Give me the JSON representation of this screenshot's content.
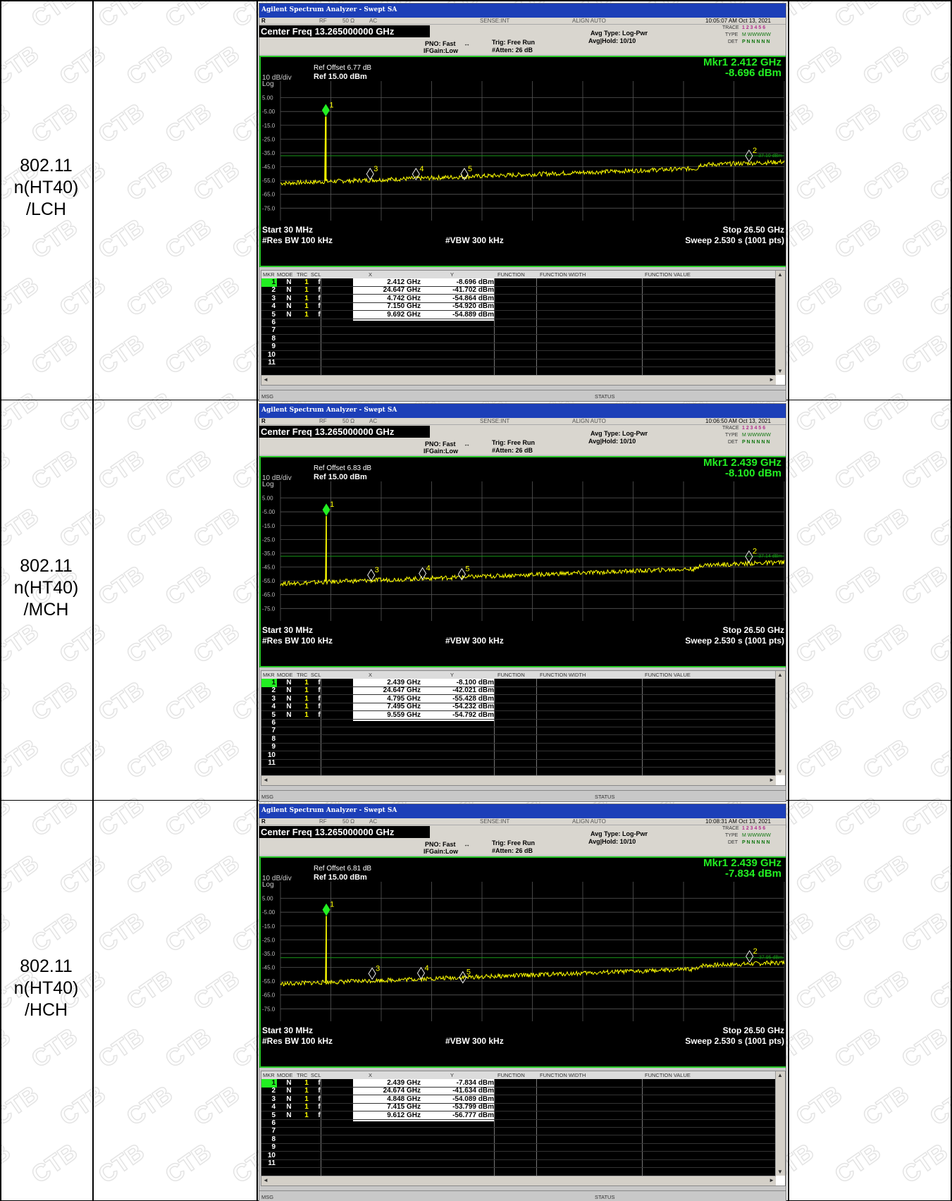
{
  "rows": [
    {
      "label": "802.11\nn(HT40)\n/LCH",
      "sa": {
        "title": "Agilent Spectrum Analyzer - Swept SA",
        "status_left": "R",
        "rf": "RF",
        "ohm": "50 Ω",
        "ac": "AC",
        "sense": "SENSE:INT",
        "align": "ALIGN AUTO",
        "timestamp": "10:05:07 AM Oct 13, 2021",
        "center_freq": "Center Freq 13.265000000 GHz",
        "pno": "PNO: Fast",
        "ifgain": "IFGain:Low",
        "trig": "Trig: Free Run",
        "atten": "#Atten: 26 dB",
        "avg_type": "Avg Type: Log-Pwr",
        "avg_hold": "Avg|Hold: 10/10",
        "trace_label": "TRACE",
        "type_label": "TYPE",
        "det_label": "DET",
        "trace_digits": "1 2 3 4 5 6",
        "type_vals": "M WWWWW",
        "det_vals": "P N N N N N",
        "mkr_line1": "Mkr1 2.412 GHz",
        "mkr_line2": "-8.696 dBm",
        "scale": "10 dB/div",
        "log": "Log",
        "ref_offset": "Ref Offset 6.77 dB",
        "ref_level": "Ref 15.00 dBm",
        "yticks": [
          "5.00",
          "-5.00",
          "-15.0",
          "-25.0",
          "-35.0",
          "-45.0",
          "-55.0",
          "-65.0",
          "-75.0"
        ],
        "limit_label": "-37.10 dBm",
        "start": "Start 30 MHz",
        "stop": "Stop 26.50 GHz",
        "rbw": "#Res BW 100 kHz",
        "vbw": "#VBW 300 kHz",
        "sweep": "Sweep  2.530 s (1001 pts)",
        "table_head": [
          "MKR",
          "MODE",
          "TRC",
          "SCL",
          "X",
          "Y",
          "FUNCTION",
          "FUNCTION WIDTH",
          "FUNCTION VALUE"
        ],
        "markers": [
          {
            "n": "1",
            "mode": "N",
            "trc": "1",
            "scl": "f",
            "x": "2.412 GHz",
            "y": "-8.696 dBm"
          },
          {
            "n": "2",
            "mode": "N",
            "trc": "1",
            "scl": "f",
            "x": "24.647 GHz",
            "y": "-41.702 dBm"
          },
          {
            "n": "3",
            "mode": "N",
            "trc": "1",
            "scl": "f",
            "x": "4.742 GHz",
            "y": "-54.864 dBm"
          },
          {
            "n": "4",
            "mode": "N",
            "trc": "1",
            "scl": "f",
            "x": "7.150 GHz",
            "y": "-54.920 dBm"
          },
          {
            "n": "5",
            "mode": "N",
            "trc": "1",
            "scl": "f",
            "x": "9.692 GHz",
            "y": "-54.889 dBm"
          }
        ],
        "empty_rows": [
          "6",
          "7",
          "8",
          "9",
          "10",
          "11"
        ],
        "msg": "MSG",
        "status": "STATUS",
        "peak_db": -8.696,
        "limit_db": -37.1,
        "marker_freqs": [
          2.412,
          24.647,
          4.742,
          7.15,
          9.692
        ],
        "marker_dbs": [
          -8.696,
          -41.702,
          -54.864,
          -54.92,
          -54.889
        ]
      }
    },
    {
      "label": "802.11\nn(HT40)\n/MCH",
      "sa": {
        "title": "Agilent Spectrum Analyzer - Swept SA",
        "status_left": "R",
        "rf": "RF",
        "ohm": "50 Ω",
        "ac": "AC",
        "sense": "SENSE:INT",
        "align": "ALIGN AUTO",
        "timestamp": "10:06:50 AM Oct 13, 2021",
        "center_freq": "Center Freq 13.265000000 GHz",
        "pno": "PNO: Fast",
        "ifgain": "IFGain:Low",
        "trig": "Trig: Free Run",
        "atten": "#Atten: 26 dB",
        "avg_type": "Avg Type: Log-Pwr",
        "avg_hold": "Avg|Hold: 10/10",
        "trace_label": "TRACE",
        "type_label": "TYPE",
        "det_label": "DET",
        "trace_digits": "1 2 3 4 5 6",
        "type_vals": "M WWWWW",
        "det_vals": "P N N N N N",
        "mkr_line1": "Mkr1 2.439 GHz",
        "mkr_line2": "-8.100 dBm",
        "scale": "10 dB/div",
        "log": "Log",
        "ref_offset": "Ref Offset 6.83 dB",
        "ref_level": "Ref 15.00 dBm",
        "yticks": [
          "5.00",
          "-5.00",
          "-15.0",
          "-25.0",
          "-35.0",
          "-45.0",
          "-55.0",
          "-65.0",
          "-75.0"
        ],
        "limit_label": "-37.14 dBm",
        "start": "Start 30 MHz",
        "stop": "Stop 26.50 GHz",
        "rbw": "#Res BW 100 kHz",
        "vbw": "#VBW 300 kHz",
        "sweep": "Sweep  2.530 s (1001 pts)",
        "table_head": [
          "MKR",
          "MODE",
          "TRC",
          "SCL",
          "X",
          "Y",
          "FUNCTION",
          "FUNCTION WIDTH",
          "FUNCTION VALUE"
        ],
        "markers": [
          {
            "n": "1",
            "mode": "N",
            "trc": "1",
            "scl": "f",
            "x": "2.439 GHz",
            "y": "-8.100 dBm"
          },
          {
            "n": "2",
            "mode": "N",
            "trc": "1",
            "scl": "f",
            "x": "24.647 GHz",
            "y": "-42.021 dBm"
          },
          {
            "n": "3",
            "mode": "N",
            "trc": "1",
            "scl": "f",
            "x": "4.795 GHz",
            "y": "-55.428 dBm"
          },
          {
            "n": "4",
            "mode": "N",
            "trc": "1",
            "scl": "f",
            "x": "7.495 GHz",
            "y": "-54.232 dBm"
          },
          {
            "n": "5",
            "mode": "N",
            "trc": "1",
            "scl": "f",
            "x": "9.559 GHz",
            "y": "-54.792 dBm"
          }
        ],
        "empty_rows": [
          "6",
          "7",
          "8",
          "9",
          "10",
          "11"
        ],
        "msg": "MSG",
        "status": "STATUS",
        "peak_db": -8.1,
        "limit_db": -37.14,
        "marker_freqs": [
          2.439,
          24.647,
          4.795,
          7.495,
          9.559
        ],
        "marker_dbs": [
          -8.1,
          -42.021,
          -55.428,
          -54.232,
          -54.792
        ]
      }
    },
    {
      "label": "802.11\nn(HT40)\n/HCH",
      "sa": {
        "title": "Agilent Spectrum Analyzer - Swept SA",
        "status_left": "R",
        "rf": "RF",
        "ohm": "50 Ω",
        "ac": "AC",
        "sense": "SENSE:INT",
        "align": "ALIGN AUTO",
        "timestamp": "10:08:31 AM Oct 13, 2021",
        "center_freq": "Center Freq 13.265000000 GHz",
        "pno": "PNO: Fast",
        "ifgain": "IFGain:Low",
        "trig": "Trig: Free Run",
        "atten": "#Atten: 26 dB",
        "avg_type": "Avg Type: Log-Pwr",
        "avg_hold": "Avg|Hold: 10/10",
        "trace_label": "TRACE",
        "type_label": "TYPE",
        "det_label": "DET",
        "trace_digits": "1 2 3 4 5 6",
        "type_vals": "M WWWWW",
        "det_vals": "P N N N N N",
        "mkr_line1": "Mkr1 2.439 GHz",
        "mkr_line2": "-7.834 dBm",
        "scale": "10 dB/div",
        "log": "Log",
        "ref_offset": "Ref Offset 6.81 dB",
        "ref_level": "Ref 15.00 dBm",
        "yticks": [
          "5.00",
          "-5.00",
          "-15.0",
          "-25.0",
          "-35.0",
          "-45.0",
          "-55.0",
          "-65.0",
          "-75.0"
        ],
        "limit_label": "-37.95 dBm",
        "start": "Start 30 MHz",
        "stop": "Stop 26.50 GHz",
        "rbw": "#Res BW 100 kHz",
        "vbw": "#VBW 300 kHz",
        "sweep": "Sweep  2.530 s (1001 pts)",
        "table_head": [
          "MKR",
          "MODE",
          "TRC",
          "SCL",
          "X",
          "Y",
          "FUNCTION",
          "FUNCTION WIDTH",
          "FUNCTION VALUE"
        ],
        "markers": [
          {
            "n": "1",
            "mode": "N",
            "trc": "1",
            "scl": "f",
            "x": "2.439 GHz",
            "y": "-7.834 dBm"
          },
          {
            "n": "2",
            "mode": "N",
            "trc": "1",
            "scl": "f",
            "x": "24.674 GHz",
            "y": "-41.634 dBm"
          },
          {
            "n": "3",
            "mode": "N",
            "trc": "1",
            "scl": "f",
            "x": "4.848 GHz",
            "y": "-54.089 dBm"
          },
          {
            "n": "4",
            "mode": "N",
            "trc": "1",
            "scl": "f",
            "x": "7.415 GHz",
            "y": "-53.799 dBm"
          },
          {
            "n": "5",
            "mode": "N",
            "trc": "1",
            "scl": "f",
            "x": "9.612 GHz",
            "y": "-56.777 dBm"
          }
        ],
        "empty_rows": [
          "6",
          "7",
          "8",
          "9",
          "10",
          "11"
        ],
        "msg": "MSG",
        "status": "STATUS",
        "peak_db": -7.834,
        "limit_db": -37.95,
        "marker_freqs": [
          2.439,
          24.674,
          4.848,
          7.415,
          9.612
        ],
        "marker_dbs": [
          -7.834,
          -41.634,
          -54.089,
          -53.799,
          -56.777
        ]
      }
    }
  ],
  "watermark": "CTB",
  "colors": {
    "trace": "#ffff00",
    "marker": "#22ee22",
    "limit": "#1a9a1a",
    "title_bar": "#1c3fb8"
  }
}
